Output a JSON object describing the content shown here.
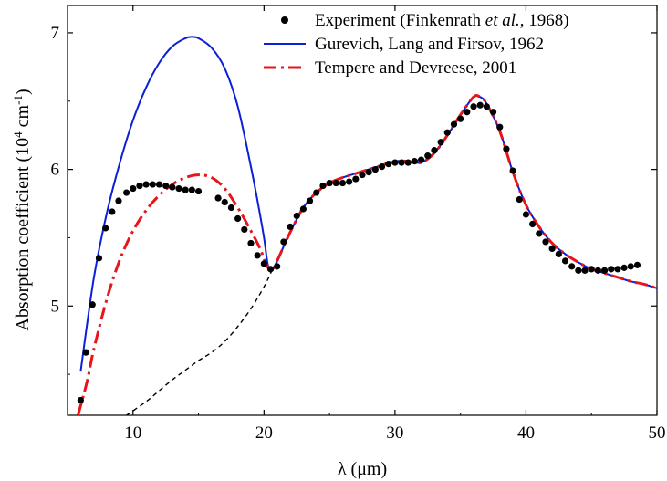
{
  "chart_data": {
    "type": "line",
    "xlabel": "λ (μm)",
    "ylabel": "Absorption coefficient (10⁴ cm⁻¹)",
    "ylabel_parts": {
      "base": "Absorption coefficient (10",
      "exp1": "4",
      "mid": " cm",
      "exp2": "-1",
      "end": ")"
    },
    "xlim": [
      5,
      50
    ],
    "ylim": [
      4.2,
      7.2
    ],
    "xticks": [
      10,
      20,
      30,
      40,
      50
    ],
    "yticks": [
      5,
      6,
      7
    ],
    "grid": false,
    "legend_position": "top-right",
    "legend": [
      {
        "marker": "dot",
        "text_before": "Experiment (Finkenrath ",
        "text_italic": "et al.",
        "text_after": ", 1968)"
      },
      {
        "marker": "solid-blue",
        "text": "Gurevich, Lang and Firsov, 1962"
      },
      {
        "marker": "dashdot-red",
        "text": "Tempere and Devreese, 2001"
      }
    ],
    "series": [
      {
        "name": "Experiment (Finkenrath et al., 1968)",
        "style": "scatter",
        "color": "#000000",
        "points": [
          [
            6.0,
            4.31
          ],
          [
            6.4,
            4.66
          ],
          [
            6.9,
            5.01
          ],
          [
            7.4,
            5.35
          ],
          [
            7.9,
            5.57
          ],
          [
            8.4,
            5.69
          ],
          [
            8.9,
            5.77
          ],
          [
            9.5,
            5.83
          ],
          [
            10.0,
            5.86
          ],
          [
            10.5,
            5.88
          ],
          [
            11.0,
            5.89
          ],
          [
            11.5,
            5.89
          ],
          [
            12.0,
            5.89
          ],
          [
            12.5,
            5.88
          ],
          [
            13.0,
            5.87
          ],
          [
            13.5,
            5.86
          ],
          [
            14.0,
            5.85
          ],
          [
            14.5,
            5.85
          ],
          [
            15.0,
            5.84
          ],
          [
            16.5,
            5.79
          ],
          [
            17.0,
            5.76
          ],
          [
            17.5,
            5.72
          ],
          [
            18.0,
            5.64
          ],
          [
            18.5,
            5.56
          ],
          [
            19.0,
            5.46
          ],
          [
            19.5,
            5.37
          ],
          [
            20.0,
            5.31
          ],
          [
            20.5,
            5.27
          ],
          [
            21.0,
            5.29
          ],
          [
            21.5,
            5.47
          ],
          [
            22.0,
            5.58
          ],
          [
            22.5,
            5.66
          ],
          [
            23.0,
            5.71
          ],
          [
            23.5,
            5.77
          ],
          [
            24.0,
            5.83
          ],
          [
            24.5,
            5.88
          ],
          [
            25.0,
            5.9
          ],
          [
            25.5,
            5.9
          ],
          [
            26.0,
            5.9
          ],
          [
            26.5,
            5.91
          ],
          [
            27.0,
            5.93
          ],
          [
            27.5,
            5.96
          ],
          [
            28.0,
            5.98
          ],
          [
            28.5,
            6.0
          ],
          [
            29.0,
            6.02
          ],
          [
            29.5,
            6.04
          ],
          [
            30.0,
            6.05
          ],
          [
            30.5,
            6.05
          ],
          [
            31.0,
            6.05
          ],
          [
            31.5,
            6.06
          ],
          [
            32.0,
            6.07
          ],
          [
            32.5,
            6.1
          ],
          [
            33.0,
            6.14
          ],
          [
            33.5,
            6.2
          ],
          [
            34.0,
            6.27
          ],
          [
            34.5,
            6.33
          ],
          [
            35.0,
            6.37
          ],
          [
            35.5,
            6.42
          ],
          [
            36.0,
            6.46
          ],
          [
            36.5,
            6.47
          ],
          [
            37.0,
            6.46
          ],
          [
            37.5,
            6.42
          ],
          [
            38.0,
            6.31
          ],
          [
            38.5,
            6.15
          ],
          [
            39.0,
            5.99
          ],
          [
            39.5,
            5.78
          ],
          [
            40.0,
            5.67
          ],
          [
            40.5,
            5.6
          ],
          [
            41.0,
            5.53
          ],
          [
            41.5,
            5.47
          ],
          [
            42.0,
            5.42
          ],
          [
            42.5,
            5.38
          ],
          [
            43.0,
            5.33
          ],
          [
            43.5,
            5.29
          ],
          [
            44.0,
            5.26
          ],
          [
            44.5,
            5.26
          ],
          [
            45.0,
            5.27
          ],
          [
            45.5,
            5.26
          ],
          [
            46.0,
            5.26
          ],
          [
            46.5,
            5.27
          ],
          [
            47.0,
            5.27
          ],
          [
            47.5,
            5.28
          ],
          [
            48.0,
            5.29
          ],
          [
            48.5,
            5.3
          ]
        ]
      },
      {
        "name": "Gurevich, Lang and Firsov, 1962",
        "style": "solid",
        "color": "#0a1fd6",
        "points": [
          [
            6.0,
            4.52
          ],
          [
            7.0,
            5.2
          ],
          [
            8.0,
            5.68
          ],
          [
            9.0,
            6.05
          ],
          [
            10.0,
            6.36
          ],
          [
            11.0,
            6.6
          ],
          [
            12.0,
            6.78
          ],
          [
            13.0,
            6.9
          ],
          [
            14.0,
            6.96
          ],
          [
            14.5,
            6.97
          ],
          [
            15.0,
            6.96
          ],
          [
            16.0,
            6.89
          ],
          [
            17.0,
            6.74
          ],
          [
            18.0,
            6.46
          ],
          [
            19.0,
            6.02
          ],
          [
            19.6,
            5.72
          ],
          [
            20.0,
            5.5
          ],
          [
            20.3,
            5.3
          ],
          [
            20.6,
            5.26
          ],
          [
            21.0,
            5.33
          ],
          [
            22.0,
            5.54
          ],
          [
            23.0,
            5.72
          ],
          [
            24.0,
            5.83
          ],
          [
            25.0,
            5.9
          ],
          [
            26.0,
            5.94
          ],
          [
            27.0,
            5.97
          ],
          [
            28.0,
            6.0
          ],
          [
            29.0,
            6.03
          ],
          [
            30.0,
            6.06
          ],
          [
            31.0,
            6.06
          ],
          [
            32.0,
            6.05
          ],
          [
            33.0,
            6.12
          ],
          [
            34.0,
            6.25
          ],
          [
            35.0,
            6.4
          ],
          [
            36.0,
            6.53
          ],
          [
            36.5,
            6.53
          ],
          [
            37.0,
            6.48
          ],
          [
            38.0,
            6.28
          ],
          [
            39.0,
            5.98
          ],
          [
            40.0,
            5.74
          ],
          [
            41.0,
            5.58
          ],
          [
            42.0,
            5.46
          ],
          [
            43.0,
            5.38
          ],
          [
            44.0,
            5.32
          ],
          [
            45.0,
            5.27
          ],
          [
            46.0,
            5.24
          ],
          [
            47.0,
            5.21
          ],
          [
            48.0,
            5.18
          ],
          [
            49.0,
            5.16
          ],
          [
            50.0,
            5.13
          ]
        ]
      },
      {
        "name": "Tempere and Devreese, 2001",
        "style": "dashdot",
        "color": "#e8141c",
        "points": [
          [
            5.8,
            4.2
          ],
          [
            6.5,
            4.45
          ],
          [
            7.0,
            4.68
          ],
          [
            8.0,
            5.05
          ],
          [
            9.0,
            5.34
          ],
          [
            10.0,
            5.55
          ],
          [
            11.0,
            5.7
          ],
          [
            12.0,
            5.81
          ],
          [
            13.0,
            5.89
          ],
          [
            14.0,
            5.94
          ],
          [
            15.0,
            5.96
          ],
          [
            16.0,
            5.94
          ],
          [
            17.0,
            5.86
          ],
          [
            18.0,
            5.72
          ],
          [
            19.0,
            5.55
          ],
          [
            19.7,
            5.42
          ],
          [
            20.2,
            5.3
          ],
          [
            20.6,
            5.26
          ],
          [
            21.0,
            5.33
          ],
          [
            22.0,
            5.54
          ],
          [
            23.0,
            5.72
          ],
          [
            24.0,
            5.83
          ],
          [
            25.0,
            5.9
          ],
          [
            26.0,
            5.94
          ],
          [
            27.0,
            5.97
          ],
          [
            28.0,
            6.0
          ],
          [
            29.0,
            6.03
          ],
          [
            30.0,
            6.06
          ],
          [
            31.0,
            6.06
          ],
          [
            32.0,
            6.05
          ],
          [
            33.0,
            6.12
          ],
          [
            34.0,
            6.25
          ],
          [
            35.0,
            6.4
          ],
          [
            36.0,
            6.53
          ],
          [
            36.5,
            6.53
          ],
          [
            37.0,
            6.48
          ],
          [
            38.0,
            6.28
          ],
          [
            39.0,
            5.98
          ],
          [
            40.0,
            5.74
          ],
          [
            41.0,
            5.58
          ],
          [
            42.0,
            5.46
          ],
          [
            43.0,
            5.38
          ],
          [
            44.0,
            5.32
          ],
          [
            45.0,
            5.27
          ],
          [
            46.0,
            5.24
          ],
          [
            47.0,
            5.21
          ],
          [
            48.0,
            5.18
          ],
          [
            49.0,
            5.16
          ],
          [
            50.0,
            5.13
          ]
        ]
      },
      {
        "style": "dashed",
        "color": "#000000",
        "points": [
          [
            9.5,
            4.2
          ],
          [
            11.0,
            4.3
          ],
          [
            12.0,
            4.38
          ],
          [
            13.0,
            4.46
          ],
          [
            14.0,
            4.53
          ],
          [
            15.0,
            4.6
          ],
          [
            16.0,
            4.66
          ],
          [
            17.0,
            4.74
          ],
          [
            18.0,
            4.85
          ],
          [
            19.0,
            4.98
          ],
          [
            20.0,
            5.14
          ],
          [
            20.6,
            5.26
          ]
        ]
      }
    ]
  }
}
